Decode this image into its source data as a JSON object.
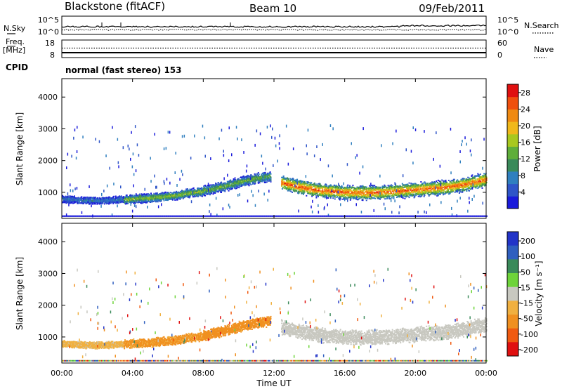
{
  "header": {
    "station": "Blackstone (fitACF)",
    "beam": "Beam 10",
    "date": "09/Feb/2011"
  },
  "noise_panel": {
    "left_label": "N.Sky",
    "left_ticks": [
      "10^5",
      "10^0"
    ],
    "right_label": "N.Search",
    "right_ticks": [
      "10^5",
      "10^0"
    ]
  },
  "freq_panel": {
    "left_label_1": "Freq.",
    "left_label_2": "[MHz]",
    "left_ticks": [
      "18",
      "8"
    ],
    "right_label": "Nave",
    "right_ticks": [
      "60",
      "0"
    ]
  },
  "cpid": {
    "label": "CPID",
    "mode": "normal (fast stereo) 153"
  },
  "colors": {
    "power_scale": [
      "#1a1adb",
      "#2f55c8",
      "#2f7fbf",
      "#3a8a5a",
      "#5fae3a",
      "#a8c81e",
      "#f0b81a",
      "#f08a12",
      "#f0500e",
      "#e01010"
    ],
    "velocity_scale": [
      "#2234c8",
      "#2f5fbf",
      "#3a8a5a",
      "#6ed43a",
      "#c8c8c0",
      "#f0b040",
      "#f09020",
      "#f05a10",
      "#e01010"
    ],
    "ground_scatter": "#c8c8c0"
  },
  "chart_data": [
    {
      "type": "heatmap",
      "name_on_chart": "",
      "xlabel": "",
      "ylabel": "Slant Range [km]",
      "x_ticks": [
        "00:00",
        "04:00",
        "08:00",
        "12:00",
        "16:00",
        "20:00",
        "00:00"
      ],
      "y_ticks": [
        "1000",
        "2000",
        "3000",
        "4000"
      ],
      "xlim_hours": [
        0,
        24
      ],
      "ylim_km": [
        180,
        4580
      ],
      "colorbar": {
        "label": "Power [dB]",
        "ticks": [
          "4",
          "8",
          "12",
          "16",
          "20",
          "24",
          "28"
        ],
        "range": [
          0,
          30
        ]
      },
      "bands": [
        {
          "t0": 0.0,
          "t1": 3.5,
          "center_km": [
            780,
            760,
            740,
            740,
            740,
            760,
            780
          ],
          "width_km": 200,
          "peak_db": 8
        },
        {
          "t0": 3.5,
          "t1": 8.0,
          "center_km": [
            760,
            800,
            820,
            860,
            900,
            980,
            1020
          ],
          "width_km": 260,
          "peak_db": 16
        },
        {
          "t0": 8.0,
          "t1": 11.8,
          "center_km": [
            1050,
            1120,
            1200,
            1300,
            1380,
            1450,
            1500
          ],
          "width_km": 300,
          "peak_db": 14
        },
        {
          "t0": 12.4,
          "t1": 24.0,
          "center_km": [
            1300,
            1150,
            1050,
            1000,
            980,
            1000,
            1050,
            1100,
            1150,
            1250,
            1400
          ],
          "width_km": 420,
          "peak_db": 26
        }
      ]
    },
    {
      "type": "heatmap",
      "ylabel": "Slant Range [km]",
      "xlabel": "Time UT",
      "x_ticks": [
        "00:00",
        "04:00",
        "08:00",
        "12:00",
        "16:00",
        "20:00",
        "00:00"
      ],
      "y_ticks": [
        "1000",
        "2000",
        "3000",
        "4000"
      ],
      "xlim_hours": [
        0,
        24
      ],
      "ylim_km": [
        180,
        4580
      ],
      "colorbar": {
        "label": "Velocity [m s⁻¹]",
        "ticks": [
          "200",
          "100",
          "50",
          "15",
          "-15",
          "-50",
          "-100",
          "-200"
        ]
      },
      "bands": [
        {
          "t0": 0.0,
          "t1": 3.5,
          "center_km": [
            780,
            760,
            740,
            740,
            740,
            760,
            780
          ],
          "width_km": 200,
          "velocity": -30
        },
        {
          "t0": 3.5,
          "t1": 8.0,
          "center_km": [
            760,
            800,
            820,
            860,
            900,
            980,
            1020
          ],
          "width_km": 260,
          "velocity": -60
        },
        {
          "t0": 8.0,
          "t1": 11.8,
          "center_km": [
            1050,
            1120,
            1200,
            1300,
            1380,
            1450,
            1500
          ],
          "width_km": 300,
          "velocity": -80
        },
        {
          "t0": 12.4,
          "t1": 24.0,
          "center_km": [
            1300,
            1150,
            1050,
            1000,
            980,
            1000,
            1050,
            1100,
            1150,
            1250,
            1400
          ],
          "width_km": 420,
          "velocity": 0
        }
      ]
    }
  ]
}
